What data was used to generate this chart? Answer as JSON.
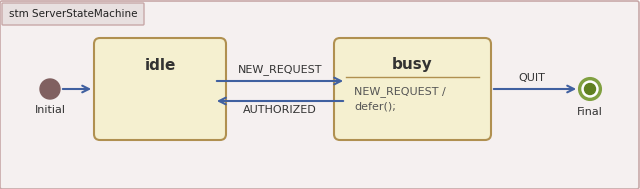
{
  "title": "stm ServerStateMachine",
  "bg_color": "#f5f0f0",
  "border_color": "#c8a8a8",
  "outer_bg": "#ffffff",
  "state_fill": "#f5f0d0",
  "state_stroke": "#c8a850",
  "state_stroke_dark": "#b09050",
  "idle_label": "idle",
  "busy_label": "busy",
  "busy_sub_label": "NEW_REQUEST /\ndefer();",
  "initial_label": "Initial",
  "final_label": "Final",
  "arrow_color": "#4060a0",
  "arrow_label_new_request": "NEW_REQUEST",
  "arrow_label_authorized": "AUTHORIZED",
  "arrow_label_quit": "QUIT",
  "initial_circle_color": "#806060",
  "final_outer_color": "#80a040",
  "final_inner_color": "#608020",
  "title_tab_color": "#e8e0e0",
  "title_tab_border": "#c8a8a8"
}
